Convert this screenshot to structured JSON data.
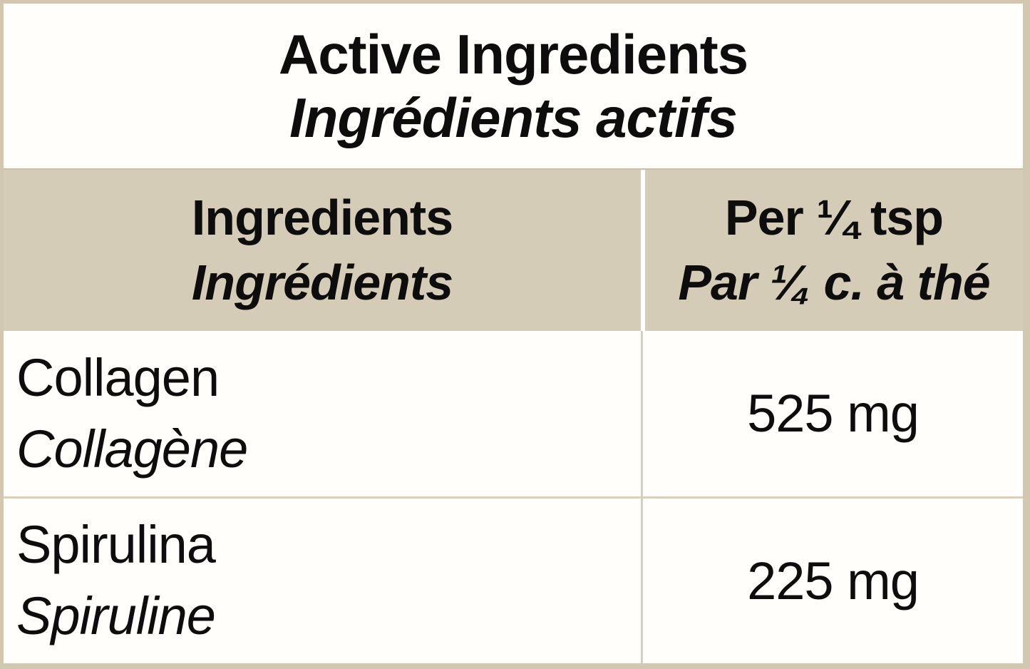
{
  "colors": {
    "beige_header_bg": "#d5ccb8",
    "border_beige": "#d2c8b2",
    "divider_beige": "#d8cfbc",
    "background_white": "#fffefb",
    "text_black": "#0d0d0d"
  },
  "title": {
    "en": "Active Ingredients",
    "fr": "Ingrédients actifs"
  },
  "table": {
    "header": {
      "ingredients_en": "Ingredients",
      "ingredients_fr": "Ingrédients",
      "amount_en": "Per ¼ tsp",
      "amount_fr": "Par ¼ c. à thé"
    },
    "rows": [
      {
        "name_en": "Collagen",
        "name_fr": "Collagène",
        "amount": "525 mg"
      },
      {
        "name_en": "Spirulina",
        "name_fr": "Spiruline",
        "amount": "225 mg"
      }
    ]
  }
}
